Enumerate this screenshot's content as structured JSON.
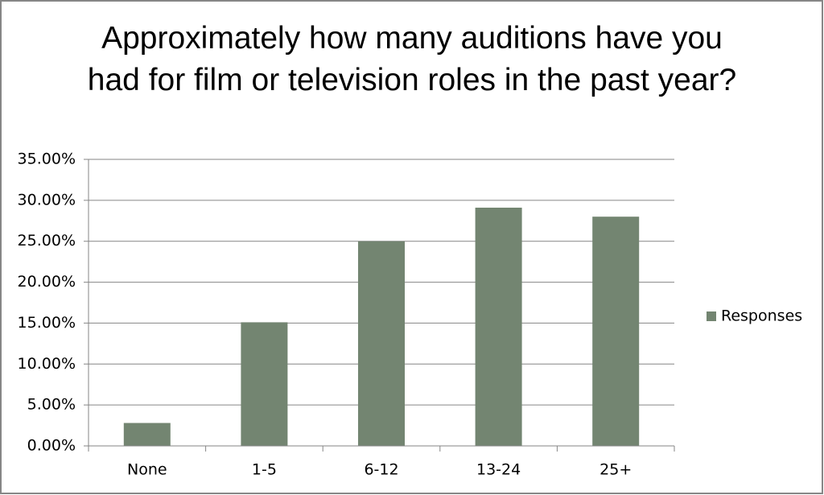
{
  "chart_data": {
    "type": "bar",
    "title": "Approximately how many auditions have you had for film or television roles in the past year?",
    "categories": [
      "None",
      "1-5",
      "6-12",
      "13-24",
      "25+"
    ],
    "series": [
      {
        "name": "Responses",
        "color": "#738571",
        "values": [
          2.8,
          15.1,
          25.0,
          29.1,
          28.0
        ]
      }
    ],
    "ylim": [
      0,
      35
    ],
    "yticks": [
      {
        "value": 0,
        "label": "0.00%"
      },
      {
        "value": 5,
        "label": "5.00%"
      },
      {
        "value": 10,
        "label": "10.00%"
      },
      {
        "value": 15,
        "label": "15.00%"
      },
      {
        "value": 20,
        "label": "20.00%"
      },
      {
        "value": 25,
        "label": "25.00%"
      },
      {
        "value": 30,
        "label": "30.00%"
      },
      {
        "value": 35,
        "label": "35.00%"
      }
    ],
    "grid": true,
    "legend": "right"
  }
}
